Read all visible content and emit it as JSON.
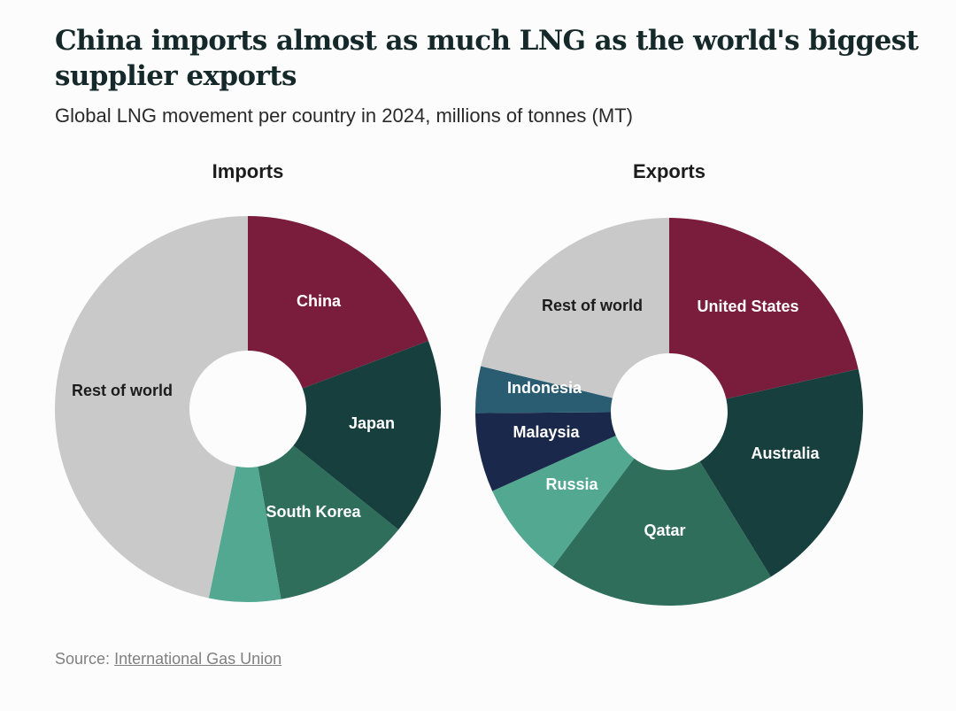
{
  "title": "China imports almost as much LNG as the world's biggest supplier exports",
  "subtitle": "Global LNG movement per country in 2024, millions of tonnes (MT)",
  "source": {
    "prefix": "Source:",
    "link_text": "International Gas Union"
  },
  "colors": {
    "maroon": "#7a1c3b",
    "dark_green": "#173f3d",
    "mid_green": "#2e6e5b",
    "light_green": "#52a891",
    "navy": "#19284b",
    "teal_blue": "#2a5d72",
    "grey": "#c9c9c9",
    "background": "#fcfcfc"
  },
  "chart_data": [
    {
      "type": "pie",
      "title": "Imports",
      "unit": "MT",
      "slices": [
        {
          "label": "China",
          "value": 77,
          "color": "#7a1c3b",
          "text_color": "#ffffff"
        },
        {
          "label": "Japan",
          "value": 66,
          "color": "#173f3d",
          "text_color": "#ffffff"
        },
        {
          "label": "South Korea",
          "value": 46,
          "color": "#2e6e5b",
          "text_color": "#ffffff"
        },
        {
          "label": "",
          "value": 24,
          "color": "#52a891",
          "text_color": "#ffffff"
        },
        {
          "label": "Rest of world",
          "value": 187,
          "color": "#c9c9c9",
          "text_color": "#1c1c1c"
        }
      ]
    },
    {
      "type": "pie",
      "title": "Exports",
      "unit": "MT",
      "slices": [
        {
          "label": "United States",
          "value": 88,
          "color": "#7a1c3b",
          "text_color": "#ffffff"
        },
        {
          "label": "Australia",
          "value": 81,
          "color": "#173f3d",
          "text_color": "#ffffff"
        },
        {
          "label": "Qatar",
          "value": 78,
          "color": "#2e6e5b",
          "text_color": "#ffffff"
        },
        {
          "label": "Russia",
          "value": 33,
          "color": "#52a891",
          "text_color": "#ffffff"
        },
        {
          "label": "Malaysia",
          "value": 27,
          "color": "#19284b",
          "text_color": "#ffffff"
        },
        {
          "label": "Indonesia",
          "value": 16,
          "color": "#2a5d72",
          "text_color": "#ffffff"
        },
        {
          "label": "Rest of world",
          "value": 87,
          "color": "#c9c9c9",
          "text_color": "#1c1c1c"
        }
      ]
    }
  ]
}
